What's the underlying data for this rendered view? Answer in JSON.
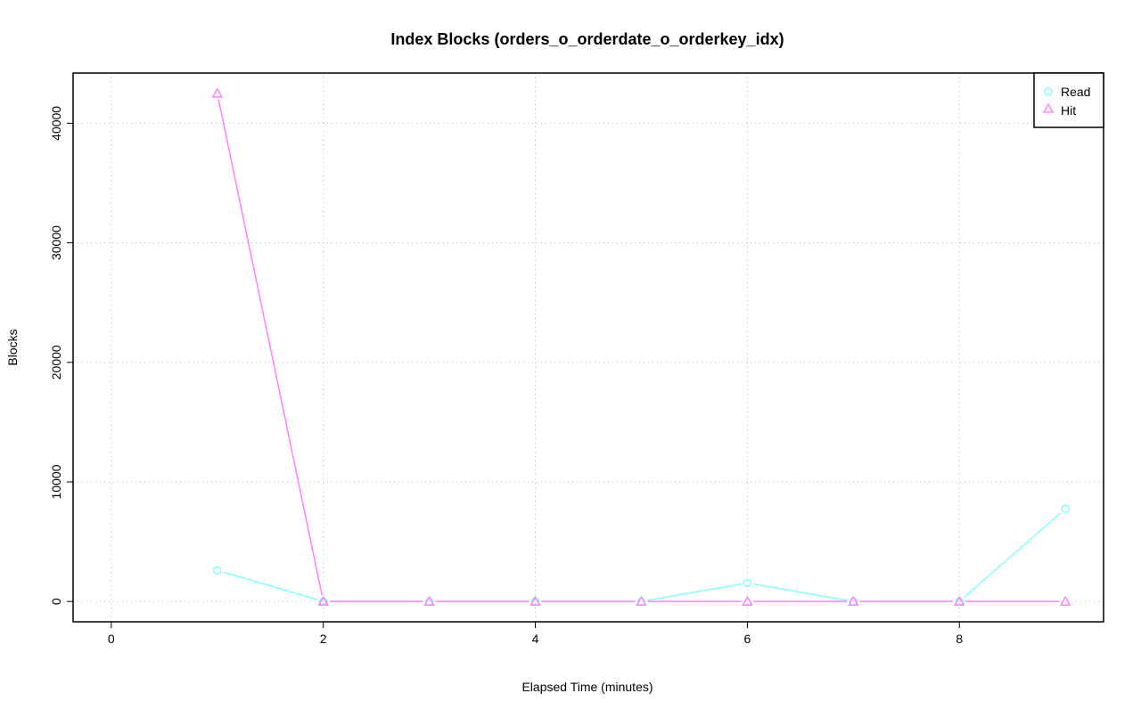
{
  "chart_data": {
    "type": "line",
    "title": "Index Blocks (orders_o_orderdate_o_orderkey_idx)",
    "xlabel": "Elapsed Time (minutes)",
    "ylabel": "Blocks",
    "xlim": [
      0,
      9
    ],
    "ylim": [
      0,
      42500
    ],
    "x_ticks": [
      0,
      2,
      4,
      6,
      8
    ],
    "y_ticks": [
      0,
      10000,
      20000,
      30000,
      40000
    ],
    "grid": true,
    "legend_position": "top-right",
    "x": [
      1,
      2,
      3,
      4,
      5,
      6,
      7,
      8,
      9
    ],
    "series": [
      {
        "name": "Read",
        "color": "#80FFFF",
        "marker": "circle",
        "values": [
          2600,
          0,
          0,
          0,
          0,
          1550,
          0,
          0,
          7750
        ]
      },
      {
        "name": "Hit",
        "color": "#FF80FF",
        "marker": "triangle",
        "values": [
          42500,
          0,
          0,
          0,
          0,
          0,
          0,
          0,
          0
        ]
      }
    ]
  }
}
